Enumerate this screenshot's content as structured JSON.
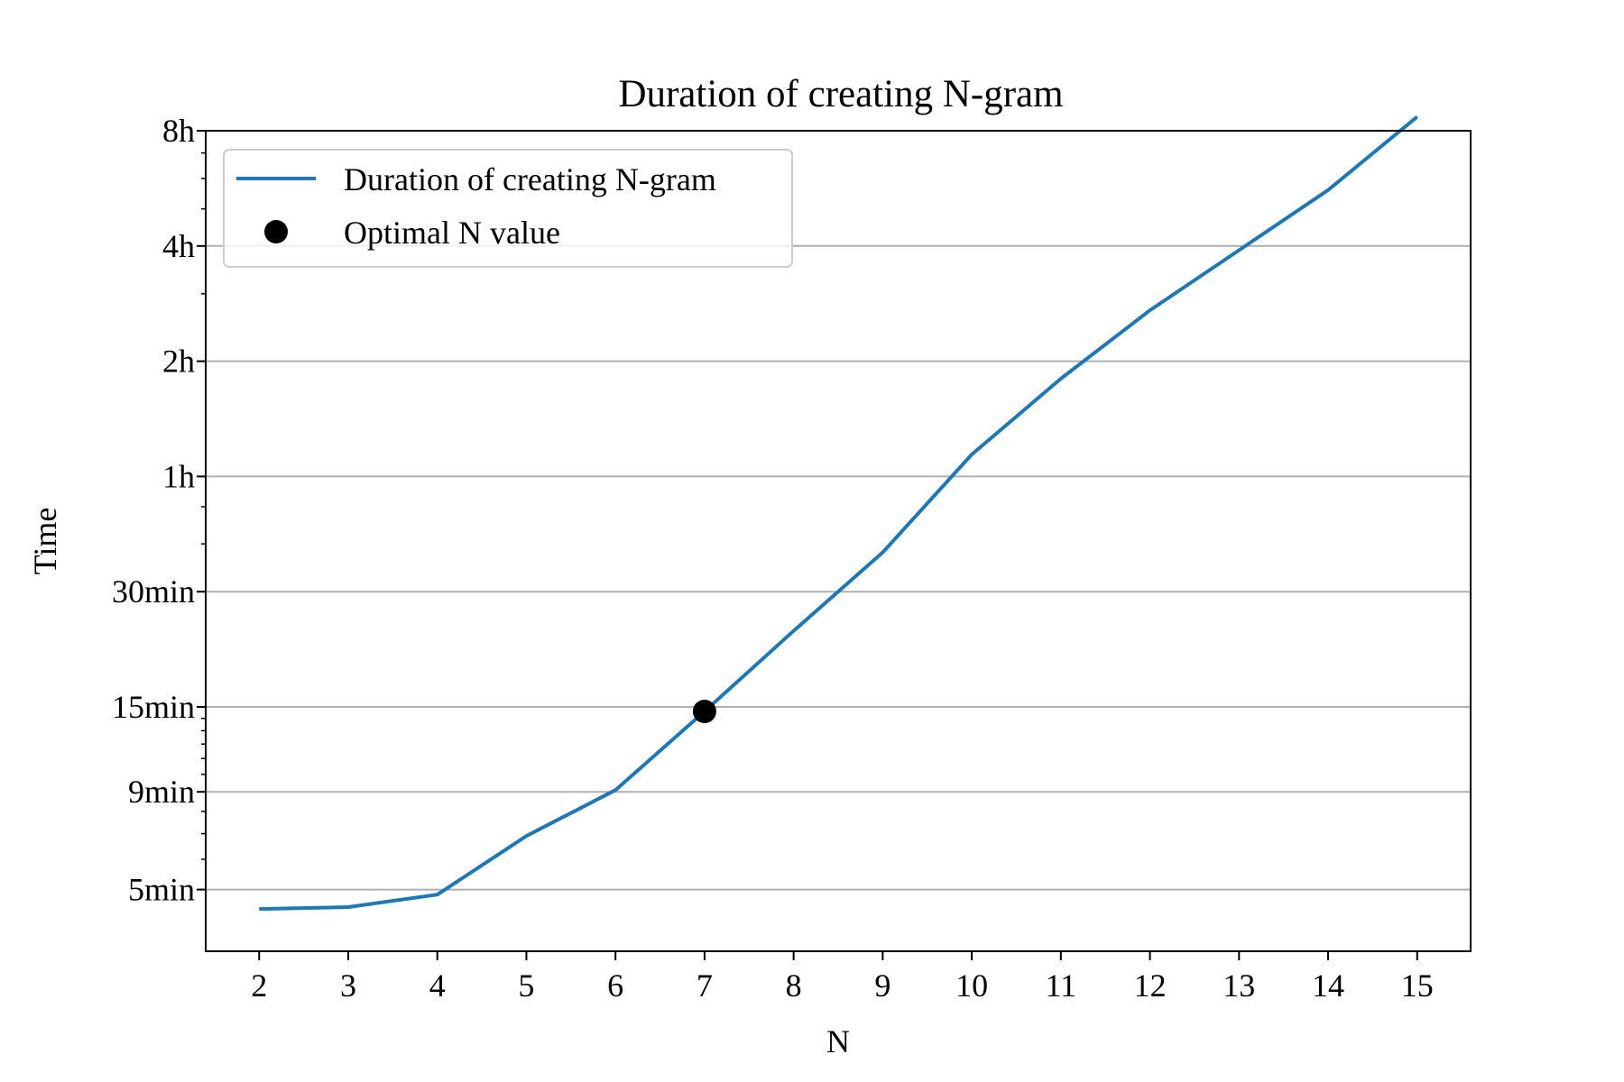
{
  "chart_data": {
    "type": "line",
    "title": "Duration of creating N-gram",
    "xlabel": "N",
    "ylabel": "Time",
    "y_scale": "log",
    "x": [
      2,
      3,
      4,
      5,
      6,
      7,
      8,
      9,
      10,
      11,
      12,
      13,
      14,
      15
    ],
    "xlim": [
      1.4,
      15.6
    ],
    "ylim_minutes": [
      3.45,
      480
    ],
    "x_ticks": [
      "2",
      "3",
      "4",
      "5",
      "6",
      "7",
      "8",
      "9",
      "10",
      "11",
      "12",
      "13",
      "14",
      "15"
    ],
    "y_ticks": [
      {
        "value": 5,
        "label": "5min"
      },
      {
        "value": 9,
        "label": "9min"
      },
      {
        "value": 15,
        "label": "15min"
      },
      {
        "value": 30,
        "label": "30min"
      },
      {
        "value": 60,
        "label": "1h"
      },
      {
        "value": 120,
        "label": "2h"
      },
      {
        "value": 240,
        "label": "4h"
      },
      {
        "value": 480,
        "label": "8h"
      }
    ],
    "y_minor_ticks": [
      6,
      7,
      8,
      10,
      11,
      12,
      13,
      14,
      40,
      50,
      180,
      300,
      360,
      420
    ],
    "grid": "horizontal at major y ticks",
    "legend_position": "upper-left",
    "series": [
      {
        "name": "Duration of creating N-gram",
        "color": "#1f77b4",
        "style": "line",
        "values": [
          4.45,
          4.5,
          4.85,
          6.9,
          9.1,
          14.6,
          23.7,
          38.0,
          68.5,
          108.0,
          163.0,
          234.0,
          336.0,
          522.0
        ]
      },
      {
        "name": "Optimal N value",
        "color": "#000000",
        "style": "marker",
        "points": [
          {
            "x": 7,
            "y": 14.6
          }
        ]
      }
    ]
  }
}
